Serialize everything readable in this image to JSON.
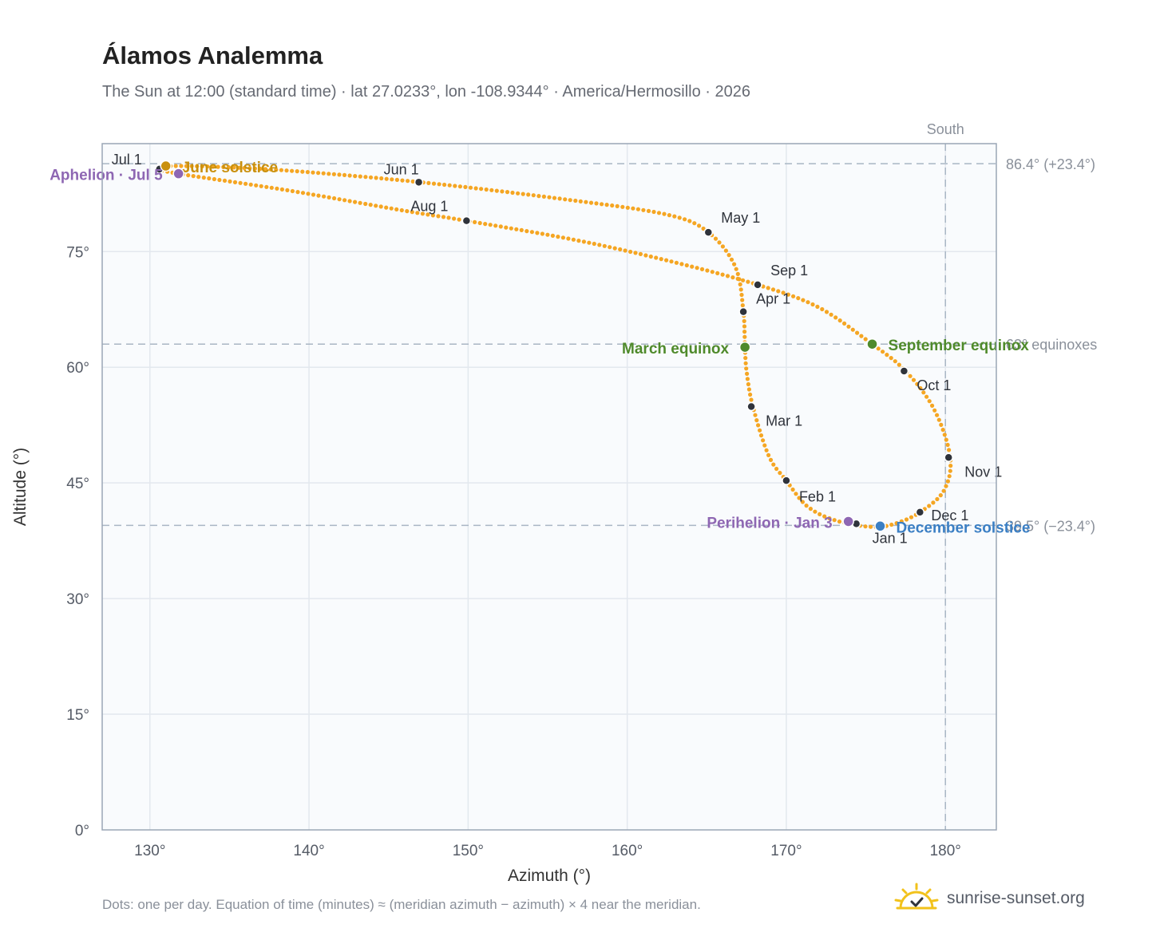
{
  "title": "Álamos Analemma",
  "subtitle": "The Sun at 12:00 (standard time) · lat 27.0233°, lon -108.9344° · America/Hermosillo · 2026",
  "footnote": "Dots: one per day. Equation of time (minutes) ≈ (meridian azimuth − azimuth) × 4 near the meridian.",
  "brand": {
    "name": "sunrise-sunset.org",
    "icon": "sun-logo-icon"
  },
  "colors": {
    "path": "#f5a623",
    "month_dot": "#2f333b",
    "solstice_june": "#c9900e",
    "solstice_december": "#3b7fc4",
    "equinox": "#4f8a2b",
    "aphelion_perihelion": "#8e67b3",
    "reference": "#a9b6c4",
    "plot_bg": "#f9fbfd"
  },
  "chart_data": {
    "type": "scatter",
    "xlabel": "Azimuth (°)",
    "ylabel": "Altitude (°)",
    "xlim": [
      127,
      183.2
    ],
    "ylim": [
      0,
      89
    ],
    "x_ticks": [
      130,
      140,
      150,
      160,
      170,
      180
    ],
    "x_tick_labels": [
      "130°",
      "140°",
      "150°",
      "160°",
      "170°",
      "180°"
    ],
    "y_ticks": [
      0,
      15,
      30,
      45,
      60,
      75
    ],
    "y_tick_labels": [
      "0°",
      "15°",
      "30°",
      "45°",
      "60°",
      "75°"
    ],
    "grid": true,
    "path_points": [
      [
        175.3,
        39.3
      ],
      [
        173.0,
        40.2
      ],
      [
        171.3,
        42.0
      ],
      [
        170.0,
        45.3
      ],
      [
        168.9,
        48.5
      ],
      [
        167.9,
        54.9
      ],
      [
        167.5,
        59.5
      ],
      [
        167.4,
        62.6
      ],
      [
        167.3,
        67.2
      ],
      [
        166.8,
        73.0
      ],
      [
        165.1,
        77.5
      ],
      [
        162.5,
        79.8
      ],
      [
        156.0,
        81.8
      ],
      [
        147.0,
        84.0
      ],
      [
        138.0,
        85.6
      ],
      [
        132.0,
        86.1
      ],
      [
        130.7,
        85.8
      ],
      [
        131.5,
        85.2
      ],
      [
        138.5,
        83.0
      ],
      [
        146.0,
        80.3
      ],
      [
        149.9,
        79.0
      ],
      [
        157.0,
        76.4
      ],
      [
        163.0,
        73.6
      ],
      [
        168.2,
        70.7
      ],
      [
        172.0,
        67.8
      ],
      [
        175.4,
        63.0
      ],
      [
        177.5,
        59.5
      ],
      [
        179.3,
        54.5
      ],
      [
        180.3,
        48.3
      ],
      [
        179.9,
        44.0
      ],
      [
        178.4,
        41.2
      ],
      [
        176.8,
        39.7
      ],
      [
        175.3,
        39.3
      ]
    ],
    "month_markers": [
      {
        "label": "Jan 1",
        "azimuth": 174.4,
        "altitude": 39.7
      },
      {
        "label": "Feb 1",
        "azimuth": 170.0,
        "altitude": 45.3
      },
      {
        "label": "Mar 1",
        "azimuth": 167.8,
        "altitude": 54.9
      },
      {
        "label": "Apr 1",
        "azimuth": 167.3,
        "altitude": 67.2
      },
      {
        "label": "May 1",
        "azimuth": 165.1,
        "altitude": 77.5
      },
      {
        "label": "Jun 1",
        "azimuth": 146.9,
        "altitude": 84.0
      },
      {
        "label": "Jul 1",
        "azimuth": 130.6,
        "altitude": 85.7
      },
      {
        "label": "Aug 1",
        "azimuth": 149.9,
        "altitude": 79.0
      },
      {
        "label": "Sep 1",
        "azimuth": 168.2,
        "altitude": 70.7
      },
      {
        "label": "Oct 1",
        "azimuth": 177.4,
        "altitude": 59.5
      },
      {
        "label": "Nov 1",
        "azimuth": 180.2,
        "altitude": 48.3
      },
      {
        "label": "Dec 1",
        "azimuth": 178.4,
        "altitude": 41.2
      }
    ],
    "events": [
      {
        "label": "June solstice",
        "azimuth": 131.0,
        "altitude": 86.1,
        "color_key": "solstice_june"
      },
      {
        "label": "Aphelion · Jul 5",
        "azimuth": 131.8,
        "altitude": 85.1,
        "color_key": "aphelion_perihelion"
      },
      {
        "label": "March equinox",
        "azimuth": 167.4,
        "altitude": 62.6,
        "color_key": "equinox"
      },
      {
        "label": "September equinox",
        "azimuth": 175.4,
        "altitude": 63.0,
        "color_key": "equinox"
      },
      {
        "label": "Perihelion · Jan 3",
        "azimuth": 173.9,
        "altitude": 40.0,
        "color_key": "aphelion_perihelion"
      },
      {
        "label": "December solstice",
        "azimuth": 175.9,
        "altitude": 39.4,
        "color_key": "solstice_december"
      }
    ],
    "reference_lines": [
      {
        "label": "86.4° (+23.4°)",
        "altitude": 86.4
      },
      {
        "label": "63° equinoxes",
        "altitude": 63.0
      },
      {
        "label": "39.5° (−23.4°)",
        "altitude": 39.5
      }
    ],
    "meridian": {
      "label": "South",
      "azimuth": 180
    }
  }
}
